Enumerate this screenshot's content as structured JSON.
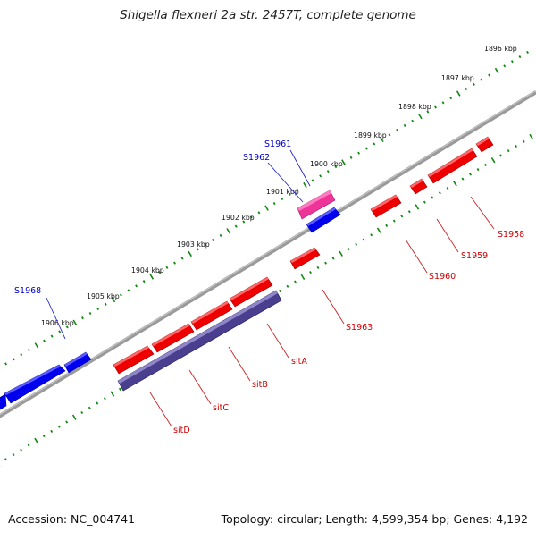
{
  "title": "Shigella flexneri 2a str. 2457T, complete genome",
  "footer": {
    "accession_label": "Accession:",
    "accession": "NC_004741",
    "topology_label": "Topology:",
    "topology": "circular",
    "length_label": "Length:",
    "length": "4,599,354 bp",
    "genes_label": "Genes:",
    "genes": "4,192"
  },
  "colors": {
    "forward_gene": "#0000ee",
    "reverse_gene": "#ee0000",
    "highlight_gene": "#ee3399",
    "operon": "#4a3f8f",
    "tick": "#118811",
    "backbone": "#888888",
    "forward_label": "#0000cc",
    "reverse_label": "#cc0000"
  },
  "ruler": [
    {
      "label": "1896 kbp",
      "kbp": 1896
    },
    {
      "label": "1897 kbp",
      "kbp": 1897
    },
    {
      "label": "1898 kbp",
      "kbp": 1898
    },
    {
      "label": "1899 kbp",
      "kbp": 1899
    },
    {
      "label": "1900 kbp",
      "kbp": 1900
    },
    {
      "label": "1901 kbp",
      "kbp": 1901
    },
    {
      "label": "1902 kbp",
      "kbp": 1902
    },
    {
      "label": "1903 kbp",
      "kbp": 1903
    },
    {
      "label": "1904 kbp",
      "kbp": 1904
    },
    {
      "label": "1905 kbp",
      "kbp": 1905
    },
    {
      "label": "1906 kbp",
      "kbp": 1906
    }
  ],
  "gene_labels": [
    {
      "name": "S1961",
      "strand": "forward"
    },
    {
      "name": "S1962",
      "strand": "forward"
    },
    {
      "name": "S1968",
      "strand": "forward"
    },
    {
      "name": "S1958",
      "strand": "reverse"
    },
    {
      "name": "S1959",
      "strand": "reverse"
    },
    {
      "name": "S1960",
      "strand": "reverse"
    },
    {
      "name": "S1963",
      "strand": "reverse"
    },
    {
      "name": "sitA",
      "strand": "reverse"
    },
    {
      "name": "sitB",
      "strand": "reverse"
    },
    {
      "name": "sitC",
      "strand": "reverse"
    },
    {
      "name": "sitD",
      "strand": "reverse"
    }
  ]
}
